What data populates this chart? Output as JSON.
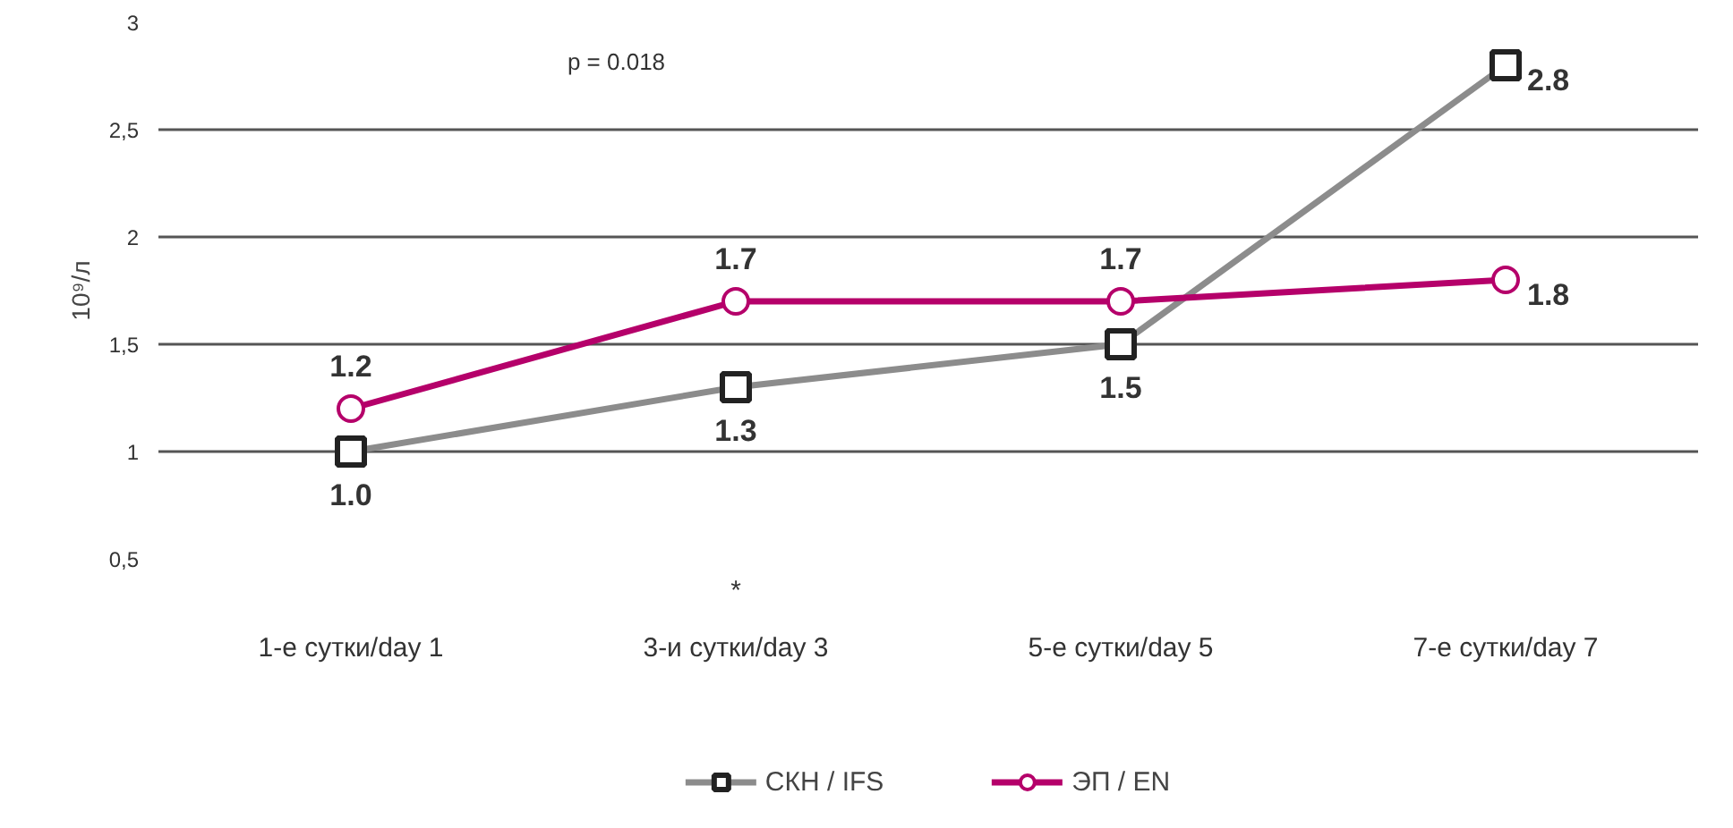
{
  "chart_data": {
    "type": "line",
    "ylabel": "10⁹/л",
    "categories": [
      "1-е сутки/day 1",
      "3-и сутки/day 3",
      "5-е сутки/day 5",
      "7-е сутки/day 7"
    ],
    "series": [
      {
        "name": "СКН / IFS",
        "color": "#8c8c8c",
        "marker": "square",
        "values": [
          1.0,
          1.3,
          1.5,
          2.8
        ],
        "value_labels": [
          "1.0",
          "1.3",
          "1.5",
          "2.8"
        ]
      },
      {
        "name": "ЭП / EN",
        "color": "#b5006a",
        "marker": "circle",
        "values": [
          1.2,
          1.7,
          1.7,
          1.8
        ],
        "value_labels": [
          "1.2",
          "1.7",
          "1.7",
          "1.8"
        ]
      }
    ],
    "ylim": [
      0.5,
      3
    ],
    "yticks": [
      {
        "value": 0.5,
        "label": "0,5"
      },
      1,
      {
        "value": 1.5,
        "label": "1,5"
      },
      2,
      {
        "value": 2.5,
        "label": "2,5"
      },
      3
    ],
    "grid": "y",
    "legend": "bottom",
    "line_style": "solid",
    "annotations": [
      "p = 0.018",
      "*"
    ]
  }
}
